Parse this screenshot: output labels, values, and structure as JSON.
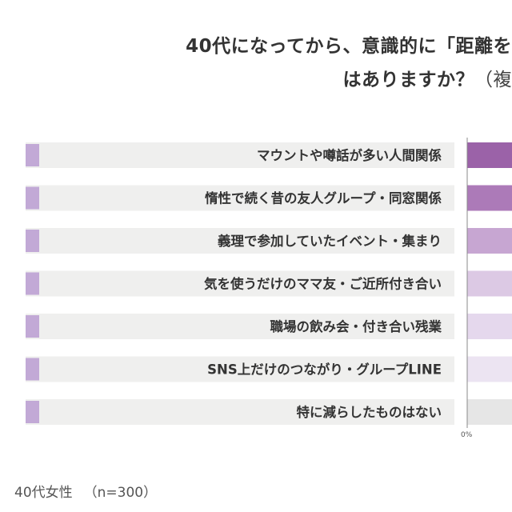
{
  "title": {
    "line1": "40代になってから、意識的に「距離を",
    "line2": "はありますか？",
    "line2_note": "（複"
  },
  "footer": {
    "respondent": "40代女性",
    "sample": "（n=300）"
  },
  "chart_data": {
    "type": "bar",
    "orientation": "horizontal",
    "categories": [
      "マウントや噂話が多い人間関係",
      "惰性で続く昔の友人グループ・同窓関係",
      "義理で参加していたイベント・集まり",
      "気を使うだけのママ友・ご近所付き合い",
      "職場の飲み会・付き合い残業",
      "SNS上だけのつながり・グループLINE",
      "特に減らしたものはない"
    ],
    "series_colors": [
      "#9b62a8",
      "#ac7ab8",
      "#c7a6d2",
      "#dcc9e4",
      "#e5d8ed",
      "#ece4f2",
      "#e6e6e6"
    ],
    "x_tick_labels": [
      "0%"
    ],
    "accent_color": "#c2a9d6"
  }
}
